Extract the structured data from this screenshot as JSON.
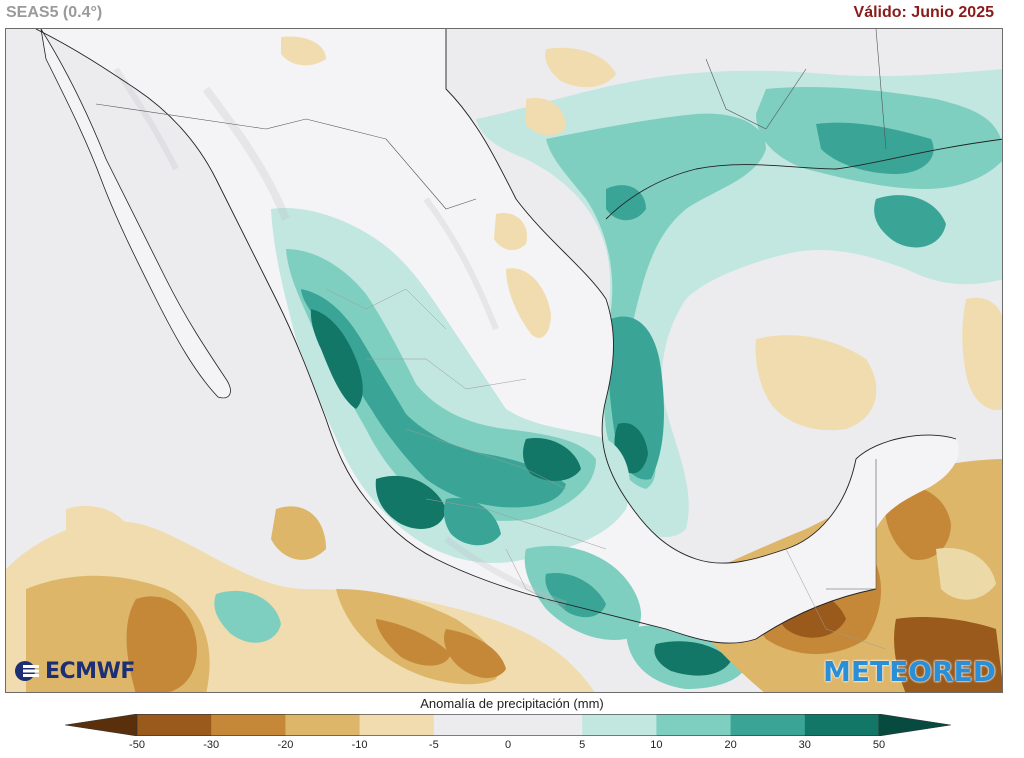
{
  "header": {
    "model": "SEAS5 (0.4°)",
    "valid": "Válido: Junio 2025"
  },
  "logos": {
    "left": "ECMWF",
    "right": "METEORED"
  },
  "map": {
    "region": "México y Centroamérica",
    "variable": "Anomalía de precipitación"
  },
  "legend": {
    "title": "Anomalía de precipitación (mm)",
    "ticks": [
      "-50",
      "-30",
      "-20",
      "-10",
      "-5",
      "0",
      "5",
      "10",
      "20",
      "30",
      "50"
    ],
    "colors": [
      "#5a2f0c",
      "#9a5a1c",
      "#c48838",
      "#ddb66a",
      "#f0dcae",
      "#ececef",
      "#ececef",
      "#c2e6e0",
      "#7fcfc0",
      "#3aa597",
      "#137767",
      "#074b40"
    ]
  }
}
